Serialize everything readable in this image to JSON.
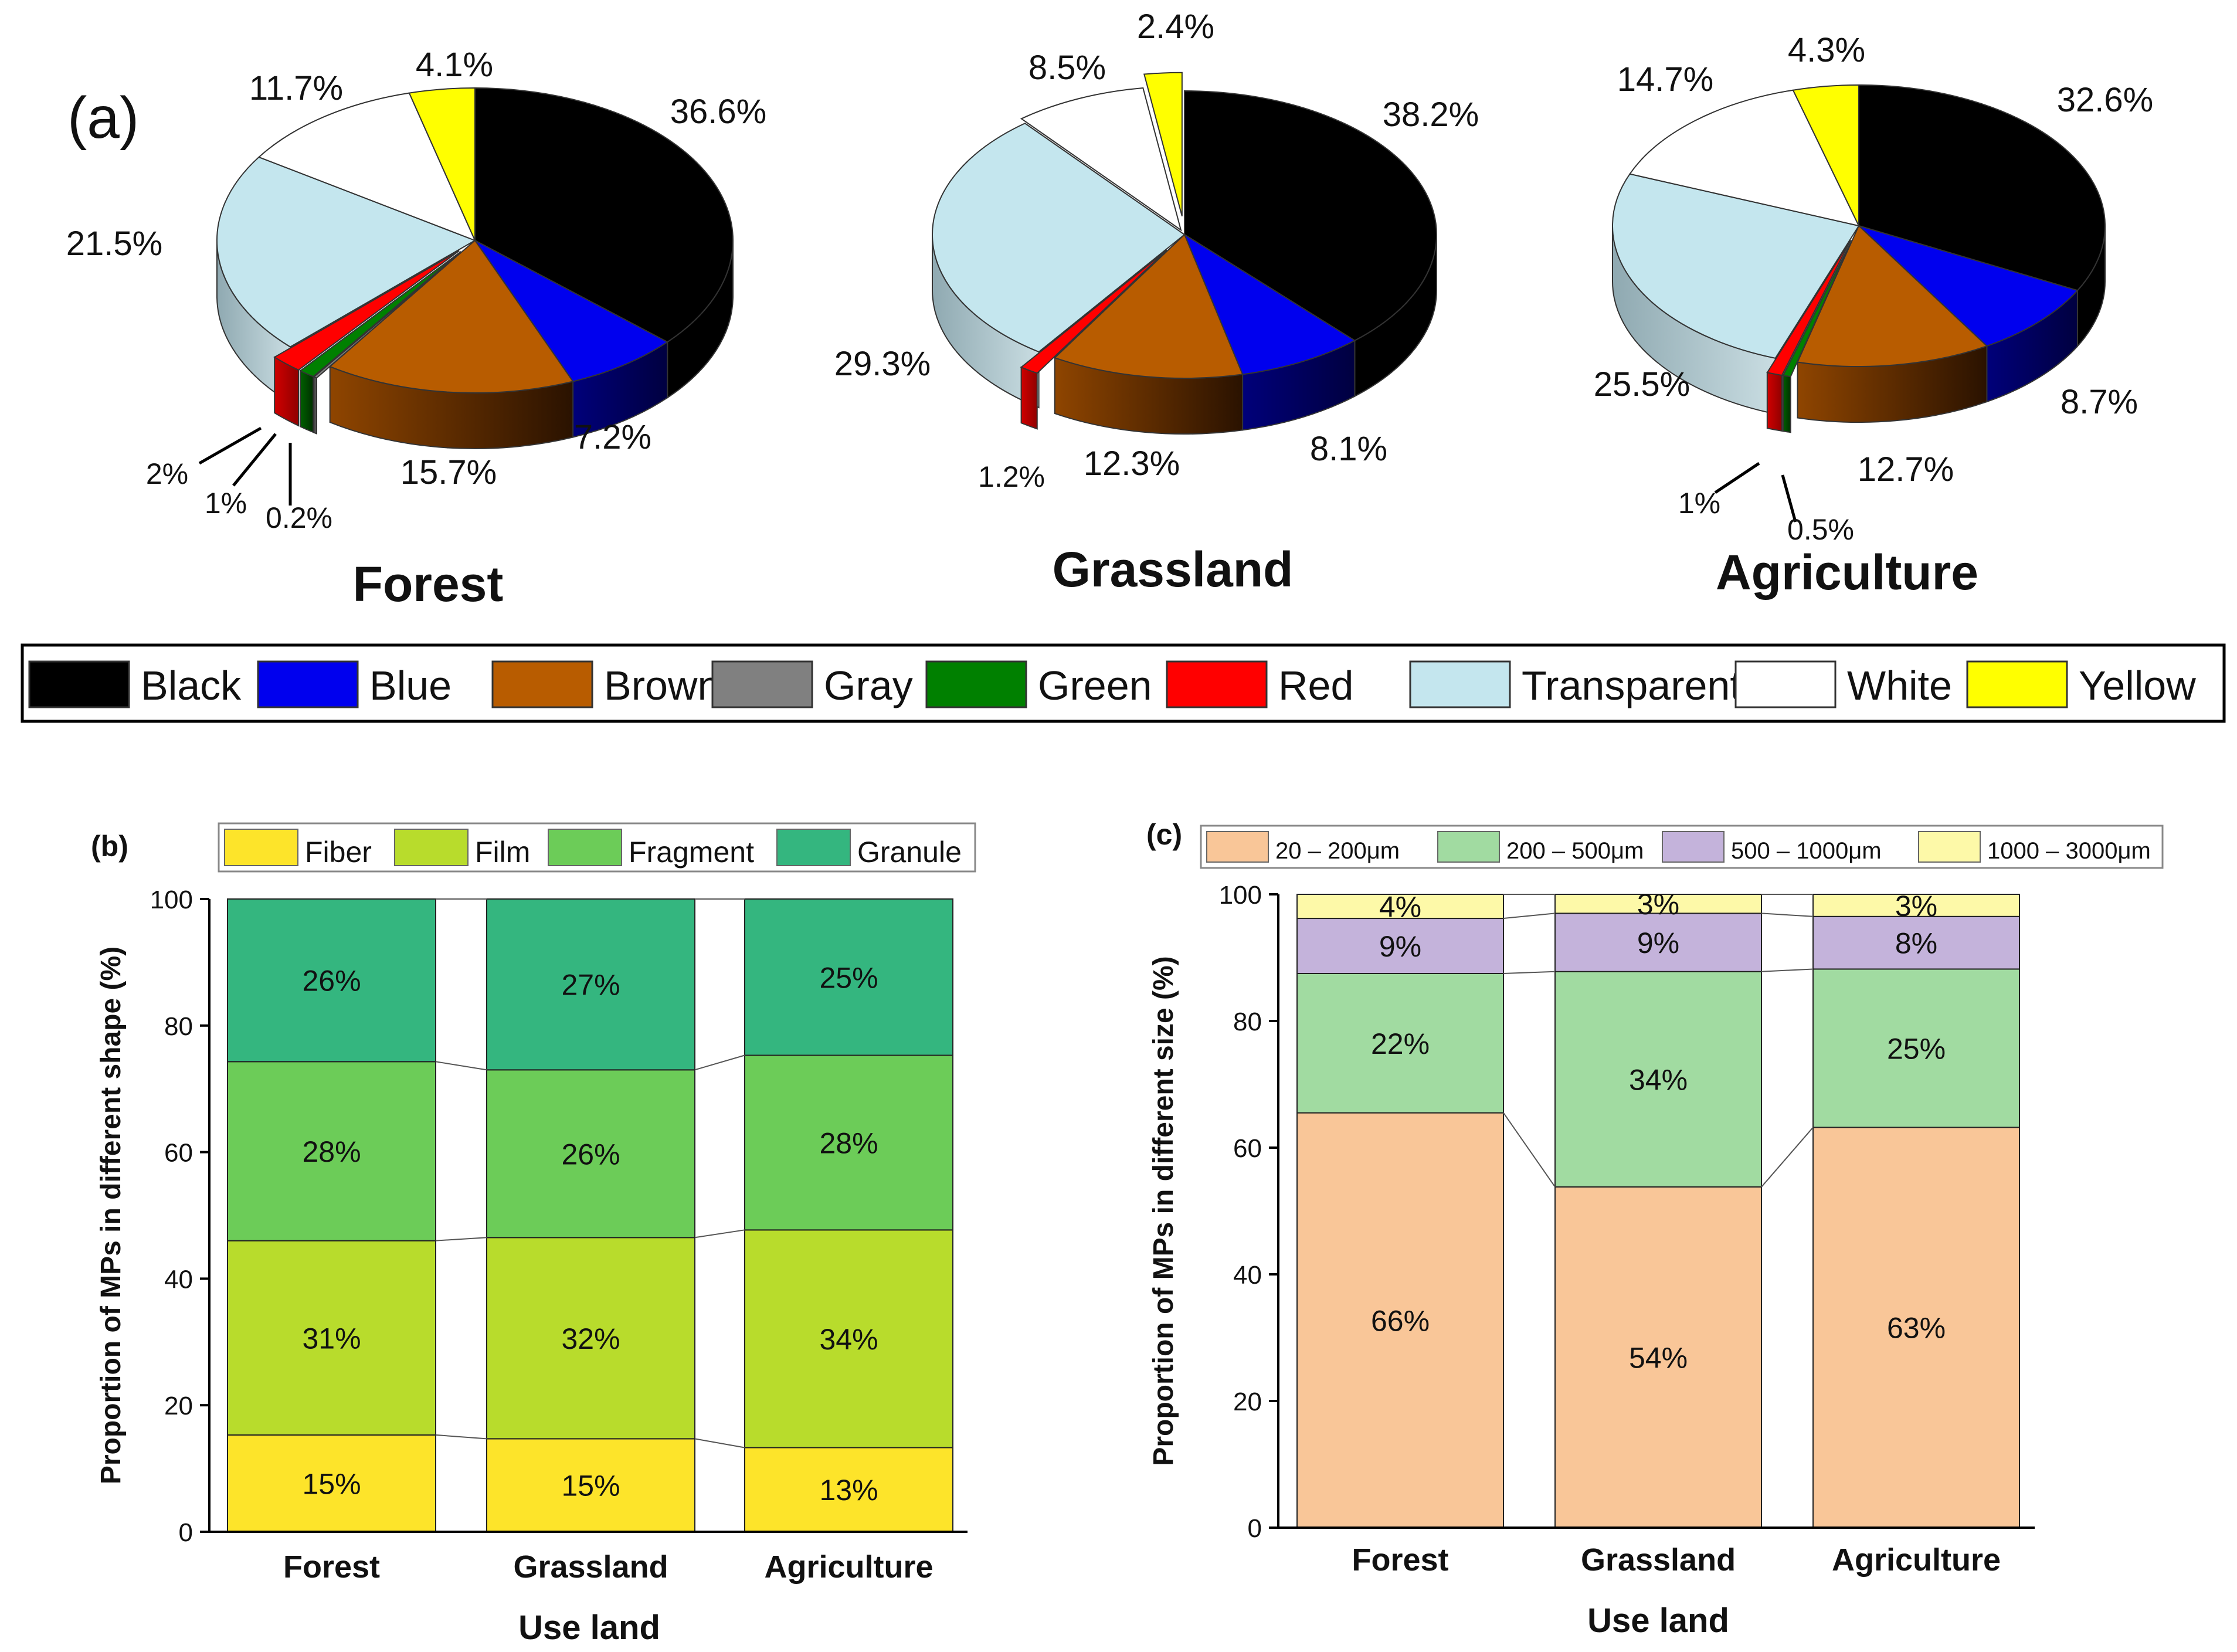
{
  "panel_labels": {
    "a": "(a)",
    "b": "(b)",
    "c": "(c)"
  },
  "colors": {
    "Black": "#000000",
    "Blue": "#0000ee",
    "Brown": "#b85c00",
    "Gray": "#808080",
    "Green": "#008000",
    "Red": "#ff0000",
    "Transparent": "#c4e6ee",
    "White": "#ffffff",
    "Yellow": "#ffff00",
    "Fiber": "#fde42a",
    "Film": "#b8dc2c",
    "Fragment": "#6ccc58",
    "Granule": "#34b67f",
    "size_1": "#f9c698",
    "size_2": "#a1dba1",
    "size_3": "#c4b3db",
    "size_4": "#fdf9a8"
  },
  "chart_data": [
    {
      "type": "pie",
      "panel": "a",
      "title": "Forest",
      "slices": [
        {
          "category": "Black",
          "value": 36.6,
          "label": "36.6%"
        },
        {
          "category": "Blue",
          "value": 7.2,
          "label": "7.2%"
        },
        {
          "category": "Brown",
          "value": 15.7,
          "label": "15.7%"
        },
        {
          "category": "Gray",
          "value": 0.2,
          "label": "0.2%"
        },
        {
          "category": "Green",
          "value": 1,
          "label": "1%"
        },
        {
          "category": "Red",
          "value": 2,
          "label": "2%"
        },
        {
          "category": "Transparent",
          "value": 21.5,
          "label": "21.5%"
        },
        {
          "category": "White",
          "value": 11.7,
          "label": "11.7%"
        },
        {
          "category": "Yellow",
          "value": 4.1,
          "label": "4.1%"
        }
      ]
    },
    {
      "type": "pie",
      "panel": "a",
      "title": "Grassland",
      "slices": [
        {
          "category": "Black",
          "value": 38.2,
          "label": "38.2%"
        },
        {
          "category": "Blue",
          "value": 8.1,
          "label": "8.1%"
        },
        {
          "category": "Brown",
          "value": 12.3,
          "label": "12.3%"
        },
        {
          "category": "Red",
          "value": 1.2,
          "label": "1.2%"
        },
        {
          "category": "Transparent",
          "value": 29.3,
          "label": "29.3%"
        },
        {
          "category": "White",
          "value": 8.5,
          "label": "8.5%"
        },
        {
          "category": "Yellow",
          "value": 2.4,
          "label": "2.4%"
        }
      ]
    },
    {
      "type": "pie",
      "panel": "a",
      "title": "Agriculture",
      "slices": [
        {
          "category": "Black",
          "value": 32.6,
          "label": "32.6%"
        },
        {
          "category": "Blue",
          "value": 8.7,
          "label": "8.7%"
        },
        {
          "category": "Brown",
          "value": 12.7,
          "label": "12.7%"
        },
        {
          "category": "Green",
          "value": 0.5,
          "label": "0.5%"
        },
        {
          "category": "Red",
          "value": 1,
          "label": "1%"
        },
        {
          "category": "Transparent",
          "value": 25.5,
          "label": "25.5%"
        },
        {
          "category": "White",
          "value": 14.7,
          "label": "14.7%"
        },
        {
          "category": "Yellow",
          "value": 4.3,
          "label": "4.3%"
        }
      ]
    },
    {
      "type": "bar",
      "stacked": true,
      "panel": "b",
      "categories": [
        "Forest",
        "Grassland",
        "Agriculture"
      ],
      "series": [
        {
          "name": "Fiber",
          "values": [
            15.3,
            14.7,
            13.3
          ],
          "labels": [
            "15%",
            "15%",
            "13%"
          ]
        },
        {
          "name": "Film",
          "values": [
            30.7,
            31.8,
            34.4
          ],
          "labels": [
            "31%",
            "32%",
            "34%"
          ]
        },
        {
          "name": "Fragment",
          "values": [
            28.3,
            26.5,
            27.6
          ],
          "labels": [
            "28%",
            "26%",
            "28%"
          ]
        },
        {
          "name": "Granule",
          "values": [
            25.7,
            27.0,
            24.7
          ],
          "labels": [
            "26%",
            "27%",
            "25%"
          ]
        }
      ],
      "xlabel": "Use land",
      "ylabel": "Proportion of MPs in different shape (%)",
      "ylim": [
        0,
        100
      ],
      "yticks": [
        0,
        20,
        40,
        60,
        80,
        100
      ],
      "legend": "top"
    },
    {
      "type": "bar",
      "stacked": true,
      "panel": "c",
      "categories": [
        "Forest",
        "Grassland",
        "Agriculture"
      ],
      "series": [
        {
          "name": "20 – 200μm",
          "values": [
            65.5,
            53.8,
            63.2
          ],
          "labels": [
            "66%",
            "54%",
            "63%"
          ]
        },
        {
          "name": "200 – 500μm",
          "values": [
            22.0,
            34.0,
            25.0
          ],
          "labels": [
            "22%",
            "34%",
            "25%"
          ]
        },
        {
          "name": "500 – 1000μm",
          "values": [
            8.7,
            9.2,
            8.3
          ],
          "labels": [
            "9%",
            "9%",
            "8%"
          ]
        },
        {
          "name": "1000 – 3000μm",
          "values": [
            3.8,
            3.0,
            3.5
          ],
          "labels": [
            "4%",
            "3%",
            "3%"
          ]
        }
      ],
      "xlabel": "Use land",
      "ylabel": "Proportion of MPs in different size (%)",
      "ylim": [
        0,
        100
      ],
      "yticks": [
        0,
        20,
        40,
        60,
        80,
        100
      ],
      "legend": "top"
    }
  ]
}
